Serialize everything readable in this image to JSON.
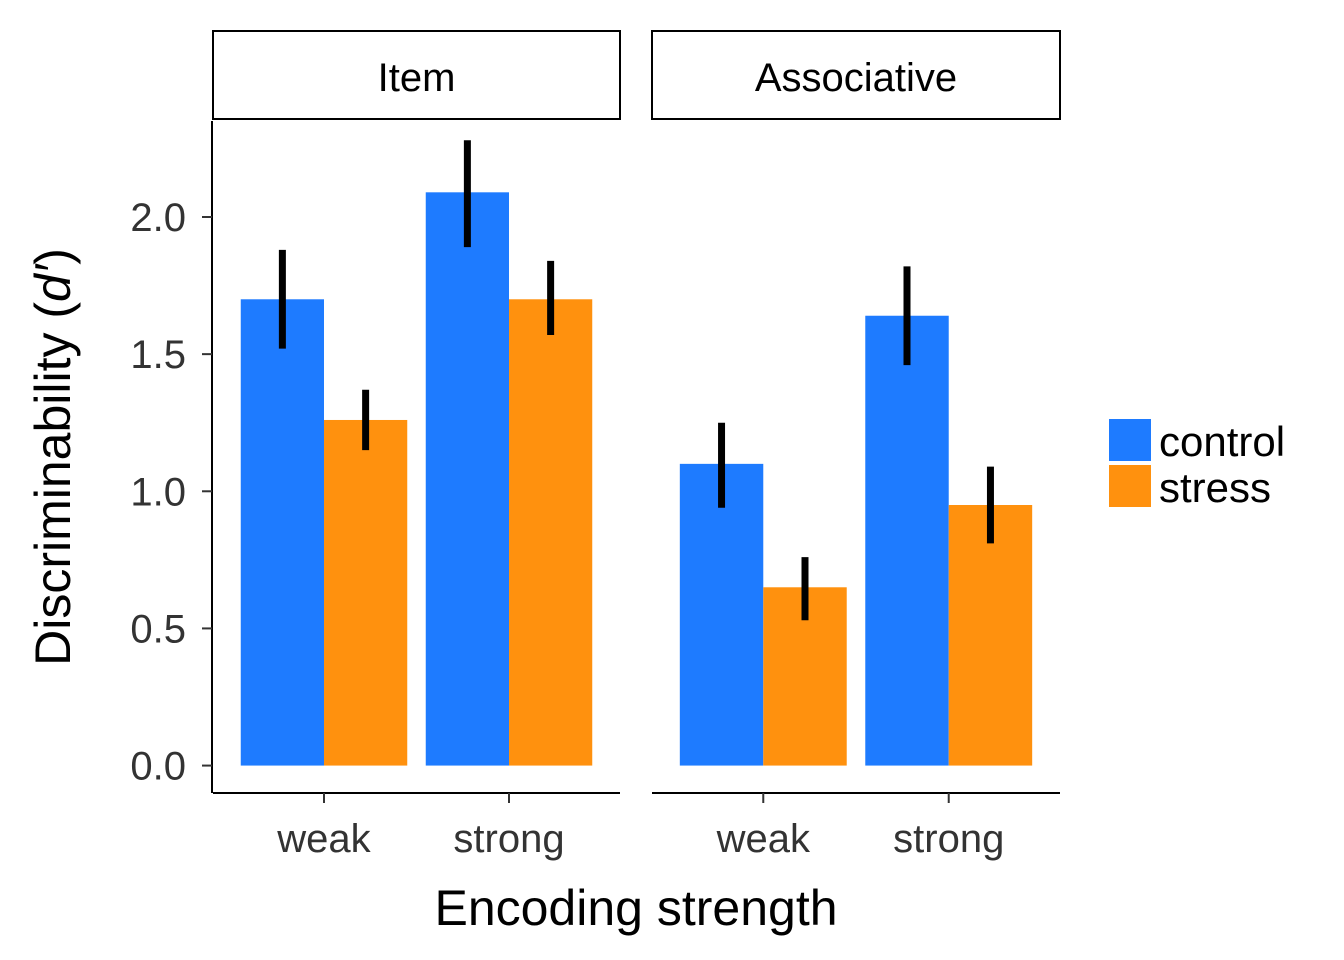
{
  "chart_data": {
    "type": "bar",
    "xlabel": "Encoding strength",
    "ylabel_prefix": "Discriminability (",
    "ylabel_italic": "d′",
    "ylabel_suffix": ")",
    "ylim": [
      -0.1,
      2.35
    ],
    "yticks": [
      0.0,
      0.5,
      1.0,
      1.5,
      2.0
    ],
    "ytick_labels": [
      "0.0",
      "0.5",
      "1.0",
      "1.5",
      "2.0"
    ],
    "categories": [
      "weak",
      "strong"
    ],
    "legend": {
      "position": "right",
      "entries": [
        {
          "name": "control",
          "color": "#1E7BFF"
        },
        {
          "name": "stress",
          "color": "#FF910E"
        }
      ]
    },
    "facets": [
      {
        "name": "Item",
        "series": [
          {
            "name": "control",
            "values": [
              1.7,
              2.09
            ],
            "err_low": [
              1.52,
              1.89
            ],
            "err_high": [
              1.88,
              2.28
            ]
          },
          {
            "name": "stress",
            "values": [
              1.26,
              1.7
            ],
            "err_low": [
              1.15,
              1.57
            ],
            "err_high": [
              1.37,
              1.84
            ]
          }
        ]
      },
      {
        "name": "Associative",
        "series": [
          {
            "name": "control",
            "values": [
              1.1,
              1.64
            ],
            "err_low": [
              0.94,
              1.46
            ],
            "err_high": [
              1.25,
              1.82
            ]
          },
          {
            "name": "stress",
            "values": [
              0.65,
              0.95
            ],
            "err_low": [
              0.53,
              0.81
            ],
            "err_high": [
              0.76,
              1.09
            ]
          }
        ]
      }
    ]
  }
}
